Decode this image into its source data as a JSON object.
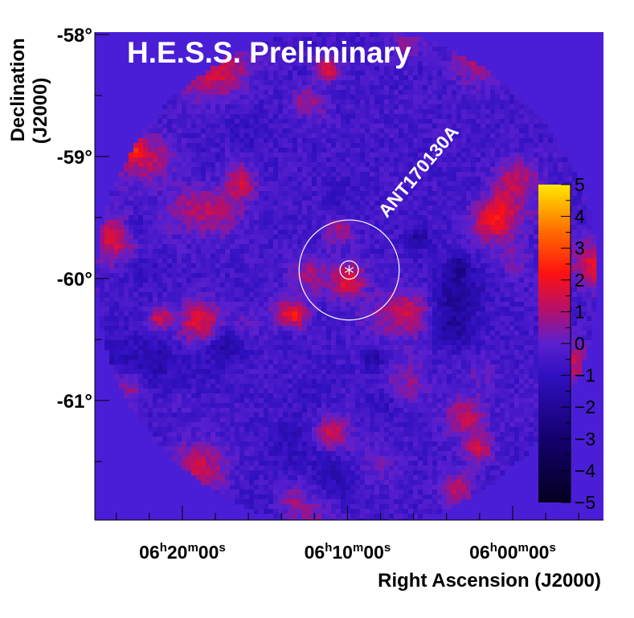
{
  "chart_data": {
    "type": "heatmap",
    "title": "H.E.S.S. Preliminary",
    "xlabel": "Right Ascension (J2000)",
    "ylabel_line1": "Declination",
    "ylabel_line2": "(J2000)",
    "x_ticks": [
      {
        "h": "06",
        "m": "20",
        "s": "00",
        "ra_min": 380
      },
      {
        "h": "06",
        "m": "10",
        "s": "00",
        "ra_min": 370
      },
      {
        "h": "06",
        "m": "00",
        "s": "00",
        "ra_min": 360
      }
    ],
    "y_ticks": [
      {
        "label": "-58°",
        "value": -58
      },
      {
        "label": "-59°",
        "value": -59
      },
      {
        "label": "-60°",
        "value": -60
      },
      {
        "label": "-61°",
        "value": -61
      }
    ],
    "ylim": [
      -61.98,
      -57.98
    ],
    "xlim_ra_min": [
      385.3,
      354.5
    ],
    "colorbar": {
      "ticks": [
        "5",
        "4",
        "3",
        "2",
        "1",
        "0",
        "−1",
        "−2",
        "−3",
        "−4",
        "−5"
      ],
      "range": [
        -5,
        5
      ]
    },
    "annotation": {
      "label": "ANT170130A",
      "ra_min": 369.9,
      "dec": -59.93,
      "outer_radius_deg": 0.41,
      "inner_radius_deg": 0.075
    },
    "colors": {
      "outside_fov": "#4a1ed6",
      "axis": "#000000",
      "title_text": "#ffffff"
    }
  }
}
